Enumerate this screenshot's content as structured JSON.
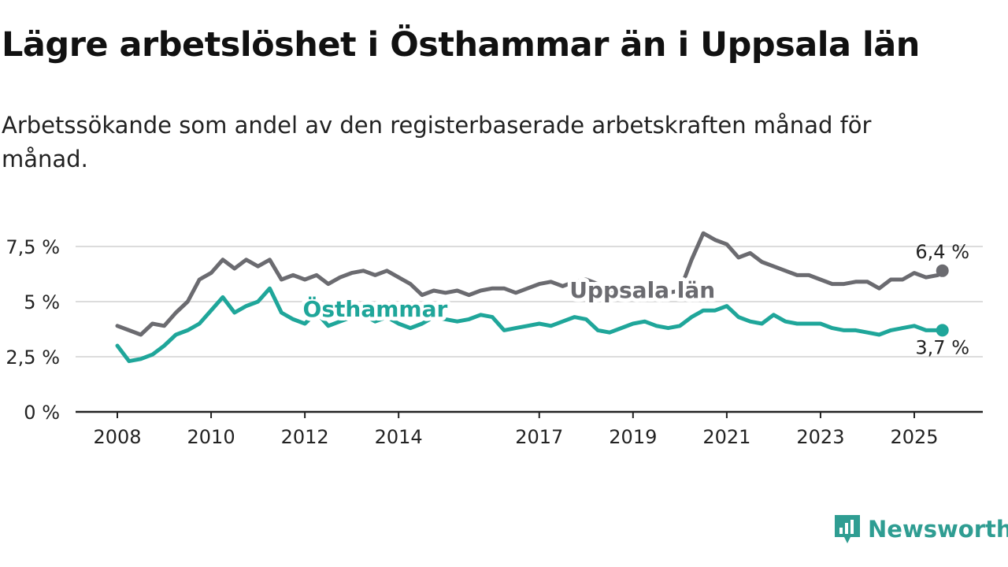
{
  "title": "Lägre arbetslöshet i Östhammar än i Uppsala län",
  "subtitle": "Arbetssökande som andel av den registerbaserade arbetskraften månad för månad.",
  "brand": {
    "name": "Newsworthy",
    "icon": "newsworthy-logo-icon",
    "color": "#2f9d92"
  },
  "chart_data": {
    "type": "line",
    "title": "Lägre arbetslöshet i Östhammar än i Uppsala län",
    "subtitle": "Arbetssökande som andel av den registerbaserade arbetskraften månad för månad.",
    "xlabel": "",
    "ylabel": "",
    "xlim": [
      2007.8,
      2026.5
    ],
    "ylim": [
      0,
      8.5
    ],
    "x_ticks": [
      2008,
      2010,
      2012,
      2014,
      2017,
      2019,
      2021,
      2023,
      2025
    ],
    "y_ticks": [
      {
        "value": 0,
        "label": "0 %"
      },
      {
        "value": 2.5,
        "label": "2,5 %"
      },
      {
        "value": 5,
        "label": "5 %"
      },
      {
        "value": 7.5,
        "label": "7,5 %"
      }
    ],
    "grid": "horizontal",
    "legend": "inline labels on lines",
    "series": [
      {
        "name": "Uppsala län",
        "color": "#6b6b70",
        "end_label": "6,4 %",
        "x": [
          2008.0,
          2008.25,
          2008.5,
          2008.75,
          2009.0,
          2009.25,
          2009.5,
          2009.75,
          2010.0,
          2010.25,
          2010.5,
          2010.75,
          2011.0,
          2011.25,
          2011.5,
          2011.75,
          2012.0,
          2012.25,
          2012.5,
          2012.75,
          2013.0,
          2013.25,
          2013.5,
          2013.75,
          2014.0,
          2014.25,
          2014.5,
          2014.75,
          2015.0,
          2015.25,
          2015.5,
          2015.75,
          2016.0,
          2016.25,
          2016.5,
          2016.75,
          2017.0,
          2017.25,
          2017.5,
          2017.75,
          2018.0,
          2018.25,
          2018.5,
          2018.75,
          2019.0,
          2019.25,
          2019.5,
          2019.75,
          2020.0,
          2020.25,
          2020.5,
          2020.75,
          2021.0,
          2021.25,
          2021.5,
          2021.75,
          2022.0,
          2022.25,
          2022.5,
          2022.75,
          2023.0,
          2023.25,
          2023.5,
          2023.75,
          2024.0,
          2024.25,
          2024.5,
          2024.75,
          2025.0,
          2025.25,
          2025.5,
          2025.6
        ],
        "values": [
          3.9,
          3.7,
          3.5,
          4.0,
          3.9,
          4.5,
          5.0,
          6.0,
          6.3,
          6.9,
          6.5,
          6.9,
          6.6,
          6.9,
          6.0,
          6.2,
          6.0,
          6.2,
          5.8,
          6.1,
          6.3,
          6.4,
          6.2,
          6.4,
          6.1,
          5.8,
          5.3,
          5.5,
          5.4,
          5.5,
          5.3,
          5.5,
          5.6,
          5.6,
          5.4,
          5.6,
          5.8,
          5.9,
          5.7,
          5.9,
          6.0,
          5.8,
          5.6,
          5.3,
          5.2,
          5.4,
          5.4,
          5.4,
          5.5,
          6.9,
          8.1,
          7.8,
          7.6,
          7.0,
          7.2,
          6.8,
          6.6,
          6.4,
          6.2,
          6.2,
          6.0,
          5.8,
          5.8,
          5.9,
          5.9,
          5.6,
          6.0,
          6.0,
          6.3,
          6.1,
          6.2,
          6.4
        ]
      },
      {
        "name": "Östhammar",
        "color": "#1fa69a",
        "end_label": "3,7 %",
        "x": [
          2008.0,
          2008.25,
          2008.5,
          2008.75,
          2009.0,
          2009.25,
          2009.5,
          2009.75,
          2010.0,
          2010.25,
          2010.5,
          2010.75,
          2011.0,
          2011.25,
          2011.5,
          2011.75,
          2012.0,
          2012.25,
          2012.5,
          2012.75,
          2013.0,
          2013.25,
          2013.5,
          2013.75,
          2014.0,
          2014.25,
          2014.5,
          2014.75,
          2015.0,
          2015.25,
          2015.5,
          2015.75,
          2016.0,
          2016.25,
          2016.5,
          2016.75,
          2017.0,
          2017.25,
          2017.5,
          2017.75,
          2018.0,
          2018.25,
          2018.5,
          2018.75,
          2019.0,
          2019.25,
          2019.5,
          2019.75,
          2020.0,
          2020.25,
          2020.5,
          2020.75,
          2021.0,
          2021.25,
          2021.5,
          2021.75,
          2022.0,
          2022.25,
          2022.5,
          2022.75,
          2023.0,
          2023.25,
          2023.5,
          2023.75,
          2024.0,
          2024.25,
          2024.5,
          2024.75,
          2025.0,
          2025.25,
          2025.5,
          2025.6
        ],
        "values": [
          3.0,
          2.3,
          2.4,
          2.6,
          3.0,
          3.5,
          3.7,
          4.0,
          4.6,
          5.2,
          4.5,
          4.8,
          5.0,
          5.6,
          4.5,
          4.2,
          4.0,
          4.5,
          3.9,
          4.1,
          4.3,
          4.4,
          4.1,
          4.3,
          4.0,
          3.8,
          4.0,
          4.3,
          4.2,
          4.1,
          4.2,
          4.4,
          4.3,
          3.7,
          3.8,
          3.9,
          4.0,
          3.9,
          4.1,
          4.3,
          4.2,
          3.7,
          3.6,
          3.8,
          4.0,
          4.1,
          3.9,
          3.8,
          3.9,
          4.3,
          4.6,
          4.6,
          4.8,
          4.3,
          4.1,
          4.0,
          4.4,
          4.1,
          4.0,
          4.0,
          4.0,
          3.8,
          3.7,
          3.7,
          3.6,
          3.5,
          3.7,
          3.8,
          3.9,
          3.7,
          3.7,
          3.7
        ]
      }
    ],
    "annotations": [
      {
        "text": "Uppsala län",
        "series": "Uppsala län",
        "at_x": 2019.2
      },
      {
        "text": "Östhammar",
        "series": "Östhammar",
        "at_x": 2013.5
      }
    ]
  }
}
